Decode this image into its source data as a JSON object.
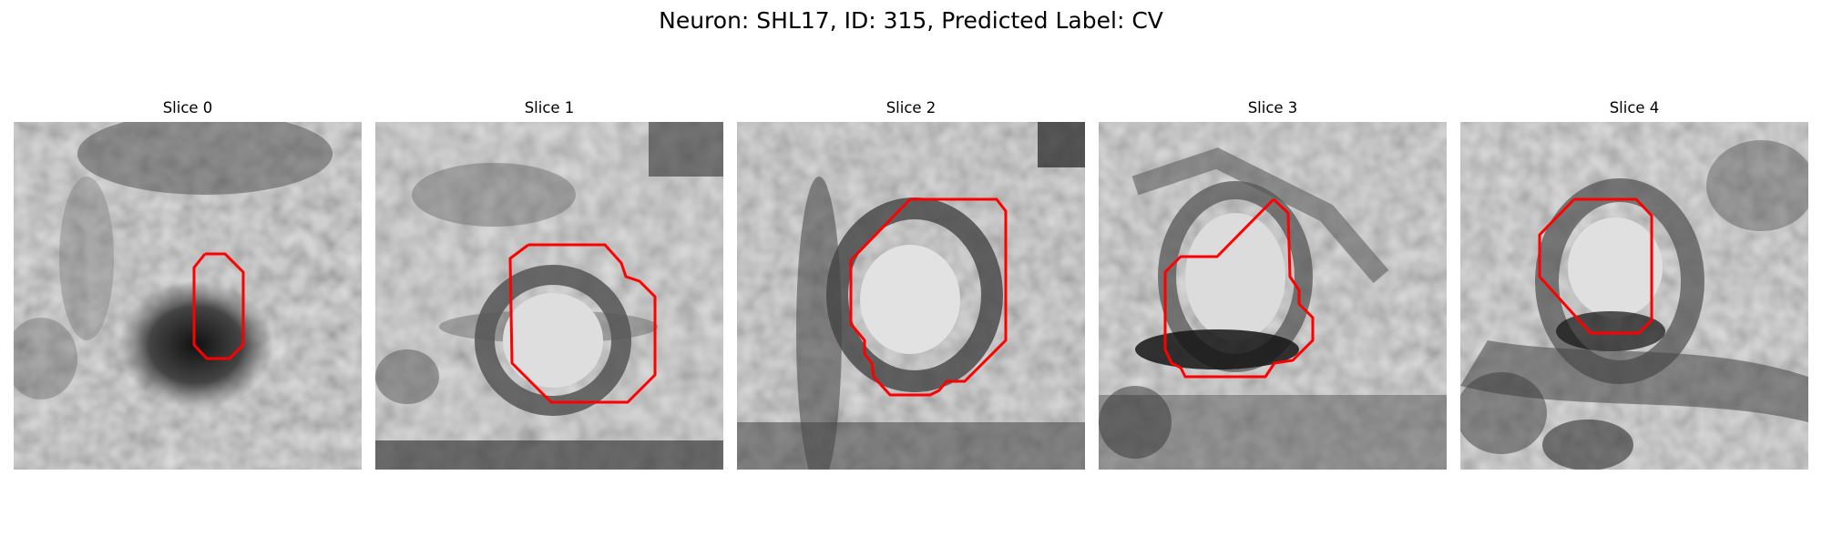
{
  "figure": {
    "title": "Neuron: SHL17, ID: 315, Predicted Label: CV"
  },
  "panels": [
    {
      "title": "Slice 0"
    },
    {
      "title": "Slice 1"
    },
    {
      "title": "Slice 2"
    },
    {
      "title": "Slice 3"
    },
    {
      "title": "Slice 4"
    }
  ],
  "style": {
    "contour_color": "#ff0000",
    "colormap": "grayscale"
  }
}
